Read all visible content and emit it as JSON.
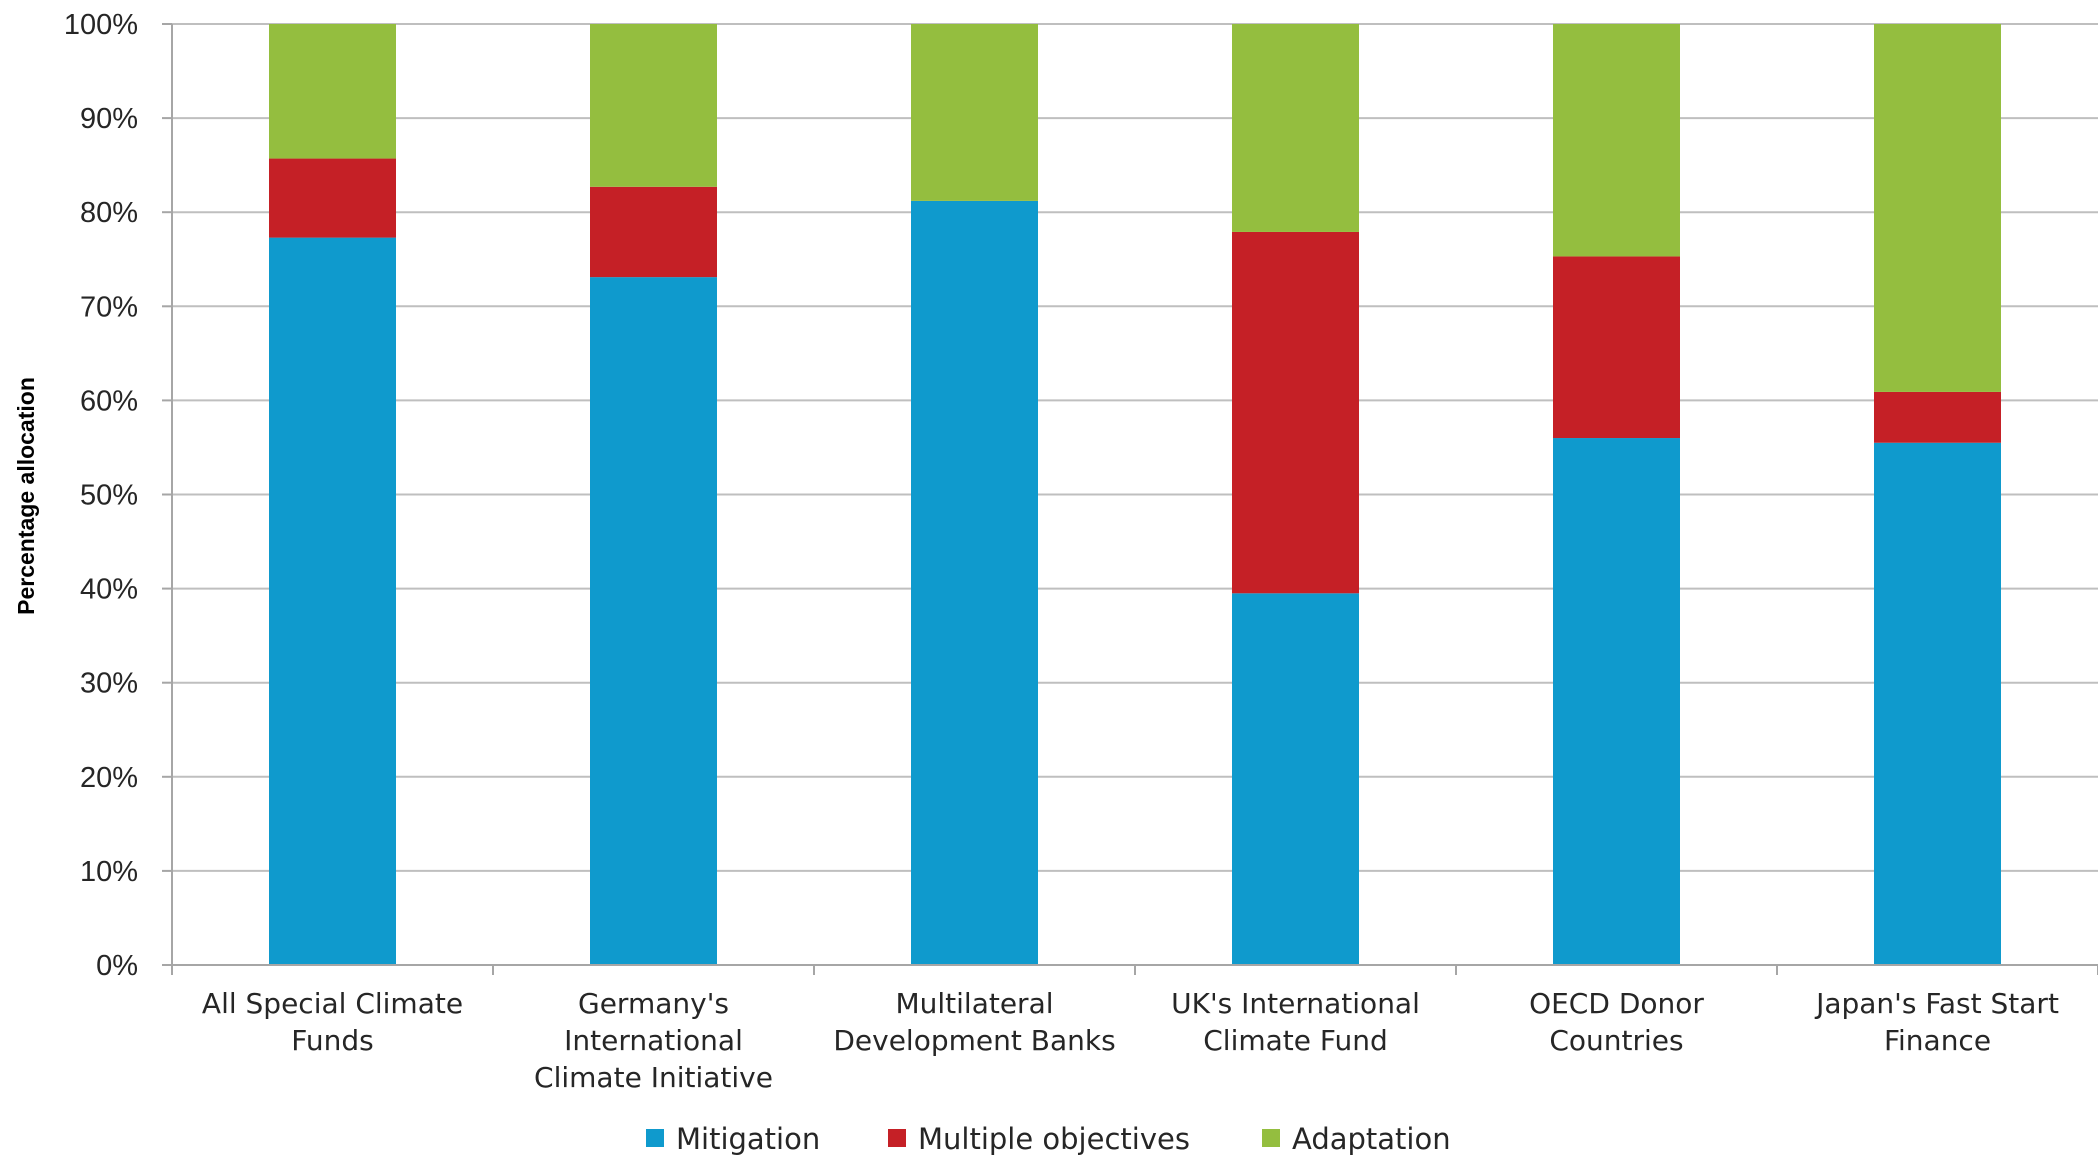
{
  "chart_data": {
    "type": "bar",
    "stacked": true,
    "ylabel": "Percentage allocation",
    "xlabel": "",
    "ylim": [
      0,
      100
    ],
    "yticks": [
      "0%",
      "10%",
      "20%",
      "30%",
      "40%",
      "50%",
      "60%",
      "70%",
      "80%",
      "90%",
      "100%"
    ],
    "grid": true,
    "legend_position": "bottom",
    "categories": [
      [
        "All Special Climate",
        "Funds"
      ],
      [
        "Germany's",
        "International",
        "Climate Initiative"
      ],
      [
        "Multilateral",
        "Development Banks"
      ],
      [
        "UK's International",
        "Climate Fund"
      ],
      [
        "OECD Donor",
        "Countries"
      ],
      [
        "Japan's Fast Start",
        "Finance"
      ]
    ],
    "series": [
      {
        "name": "Mitigation",
        "color": "#0f9acd",
        "values": [
          77.3,
          73.1,
          81.2,
          39.5,
          56.0,
          55.5
        ]
      },
      {
        "name": "Multiple objectives",
        "color": "#c52026",
        "values": [
          8.4,
          9.6,
          0.0,
          38.4,
          19.3,
          5.4
        ]
      },
      {
        "name": "Adaptation",
        "color": "#94be3f",
        "values": [
          14.3,
          17.3,
          18.8,
          22.1,
          24.7,
          39.1
        ]
      }
    ]
  }
}
